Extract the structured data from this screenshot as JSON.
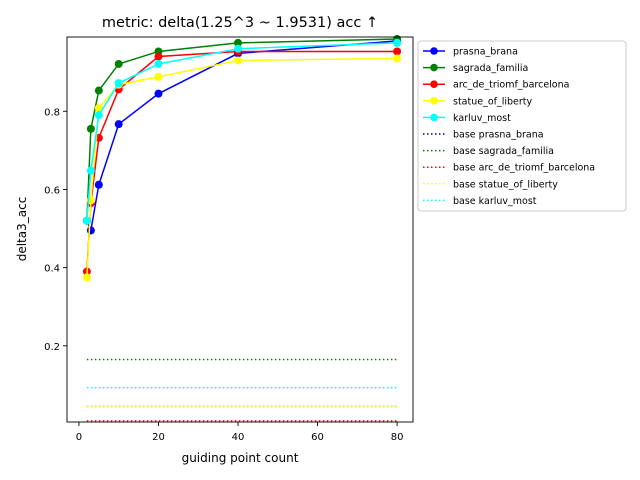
{
  "chart_data": {
    "type": "line",
    "title": "metric: delta(1.25^3 ~ 1.9531) acc ↑",
    "xlabel": "guiding point count",
    "ylabel": "delta3_acc",
    "xlim": [
      -3,
      84
    ],
    "ylim": [
      0.005,
      0.99
    ],
    "xticks": [
      0,
      20,
      40,
      60,
      80
    ],
    "yticks": [
      0.2,
      0.4,
      0.6,
      0.8
    ],
    "x": [
      2,
      3,
      5,
      10,
      20,
      40,
      80
    ],
    "grid": false,
    "legend_position": "outside-right",
    "series": [
      {
        "name": "prasna_brana",
        "color": "#0000ff",
        "style": "solid-marker",
        "values": [
          0.52,
          0.495,
          0.612,
          0.767,
          0.845,
          0.948,
          0.98
        ]
      },
      {
        "name": "sagrada_familia",
        "color": "#008000",
        "style": "solid-marker",
        "values": [
          0.52,
          0.755,
          0.853,
          0.921,
          0.953,
          0.975,
          0.985
        ]
      },
      {
        "name": "arc_de_triomf_barcelona",
        "color": "#ff0000",
        "style": "solid-marker",
        "values": [
          0.39,
          0.565,
          0.732,
          0.856,
          0.94,
          0.953,
          0.953
        ]
      },
      {
        "name": "statue_of_liberty",
        "color": "#ffff00",
        "style": "solid-marker",
        "values": [
          0.375,
          0.572,
          0.808,
          0.868,
          0.888,
          0.93,
          0.935
        ]
      },
      {
        "name": "karluv_most",
        "color": "#00ffff",
        "style": "solid-marker",
        "values": [
          0.52,
          0.648,
          0.79,
          0.872,
          0.921,
          0.96,
          0.975
        ]
      },
      {
        "name": "base prasna_brana",
        "color": "#00008b",
        "style": "dotted",
        "value": 0.045
      },
      {
        "name": "base sagrada_familia",
        "color": "#008000",
        "style": "dotted",
        "value": 0.165
      },
      {
        "name": "base arc_de_triomf_barcelona",
        "color": "#ff0000",
        "style": "dotted",
        "value": 0.008
      },
      {
        "name": "base statue_of_liberty",
        "color": "#ffff00",
        "style": "dotted",
        "value": 0.045
      },
      {
        "name": "base karluv_most",
        "color": "#00ffff",
        "style": "dotted",
        "value": 0.093
      }
    ]
  }
}
